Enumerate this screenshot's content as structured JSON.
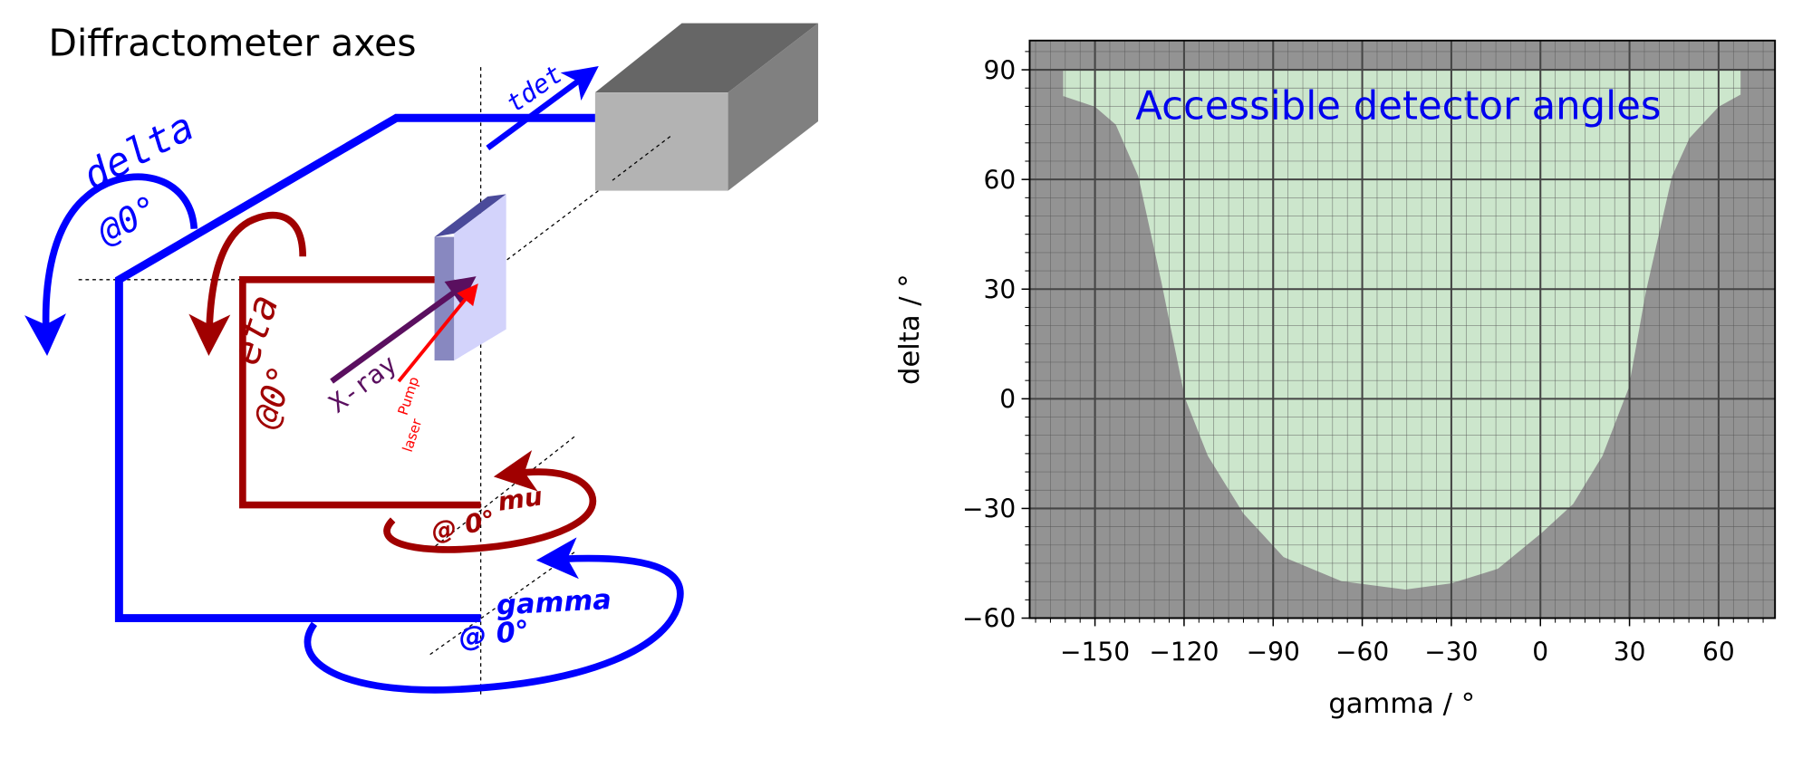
{
  "diagram": {
    "title": "Diffractometer axes",
    "labels": {
      "tdet": "tdet",
      "delta": "delta",
      "delta_angle": "@0°",
      "eta": "eta",
      "eta_angle": "@0°",
      "xray": "X-ray",
      "pump": "Pump",
      "laser": "laser",
      "mu": "mu",
      "mu_angle": "@ 0°",
      "gamma": "gamma",
      "gamma_angle": "@ 0°"
    },
    "colors": {
      "blue_axes": "#0000ff",
      "red_axes": "#a00000",
      "xray": "#5a0f5f",
      "pump": "#ff0000",
      "detector_front": "#b3b3b3",
      "detector_top": "#666666",
      "detector_side": "#808080",
      "sample": "#d3d3fb",
      "sample_edge": "#8888c0"
    }
  },
  "chart_data": {
    "type": "area",
    "title": "",
    "annotation": "Accessible detector angles",
    "xlabel": "gamma / °",
    "ylabel": "delta / °",
    "xlim": [
      -172,
      79
    ],
    "ylim": [
      -60,
      98
    ],
    "xticks": [
      -150,
      -120,
      -90,
      -60,
      -30,
      0,
      30,
      60
    ],
    "xtick_labels": [
      "−150",
      "−120",
      "−90",
      "−60",
      "−30",
      "0",
      "30",
      "60"
    ],
    "yticks": [
      -60,
      -30,
      0,
      30,
      60,
      90
    ],
    "ytick_labels": [
      "−60",
      "−30",
      "0",
      "30",
      "60",
      "90"
    ],
    "minor_step": 5,
    "grid": true,
    "colors": {
      "inaccessible": "#939393",
      "accessible": "#cce6cc",
      "annotation": "#0000ee",
      "grid_major": "#444444",
      "grid_minor": "#555555"
    },
    "accessible_boundary": [
      [
        -160.7,
        90
      ],
      [
        -160.7,
        82.8
      ],
      [
        -150,
        79.9
      ],
      [
        -143,
        75
      ],
      [
        -135.4,
        60.8
      ],
      [
        -127.6,
        31.8
      ],
      [
        -119.7,
        0.2
      ],
      [
        -112,
        -15.6
      ],
      [
        -100,
        -31.4
      ],
      [
        -86.5,
        -43.3
      ],
      [
        -67,
        -49.9
      ],
      [
        -45.5,
        -52.2
      ],
      [
        -30,
        -50.5
      ],
      [
        -14.3,
        -46.5
      ],
      [
        0.4,
        -36.7
      ],
      [
        11,
        -28.8
      ],
      [
        20.9,
        -15.6
      ],
      [
        29.7,
        2.9
      ],
      [
        35.5,
        29.2
      ],
      [
        44.3,
        60.8
      ],
      [
        50.2,
        71.3
      ],
      [
        60,
        79.9
      ],
      [
        67.4,
        83.2
      ],
      [
        67.4,
        90
      ]
    ]
  }
}
